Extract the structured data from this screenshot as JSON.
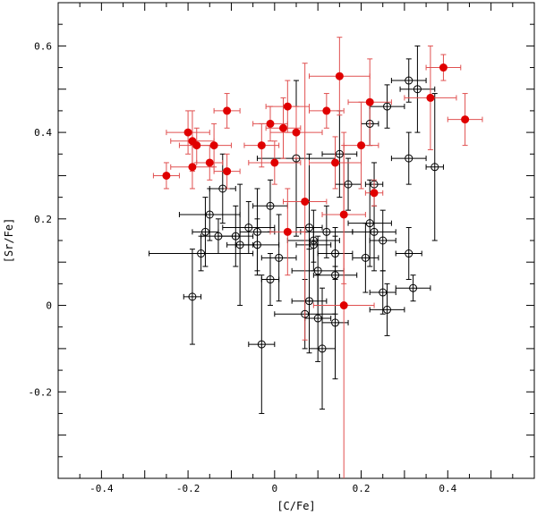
{
  "chart_data": {
    "type": "scatter",
    "title": "",
    "xlabel": "[C/Fe]",
    "ylabel": "[Sr/Fe]",
    "xlim": [
      -0.5,
      0.6
    ],
    "ylim": [
      -0.4,
      0.7
    ],
    "x_ticks": [
      -0.4,
      -0.2,
      0,
      0.2,
      0.4
    ],
    "x_tick_labels": [
      "-0.4",
      "-0.2",
      "0",
      "0.2",
      "0.4"
    ],
    "y_ticks": [
      -0.2,
      0,
      0.2,
      0.4,
      0.6
    ],
    "y_tick_labels": [
      "-0.2",
      "0",
      "0.2",
      "0.4",
      "0.6"
    ],
    "grid": false,
    "series": [
      {
        "marker": "filled-circle",
        "color": "#e00000",
        "errorbar_color": "#e05050",
        "points": [
          {
            "x": -0.25,
            "y": 0.3,
            "xerr": 0.03,
            "yerr": 0.03
          },
          {
            "x": -0.2,
            "y": 0.4,
            "xerr": 0.05,
            "yerr": 0.05
          },
          {
            "x": -0.19,
            "y": 0.38,
            "xerr": 0.05,
            "yerr": 0.07
          },
          {
            "x": -0.18,
            "y": 0.37,
            "xerr": 0.04,
            "yerr": 0.04
          },
          {
            "x": -0.19,
            "y": 0.32,
            "xerr": 0.05,
            "yerr": 0.05
          },
          {
            "x": -0.15,
            "y": 0.33,
            "xerr": 0.03,
            "yerr": 0.04
          },
          {
            "x": -0.14,
            "y": 0.37,
            "xerr": 0.04,
            "yerr": 0.05
          },
          {
            "x": -0.11,
            "y": 0.45,
            "xerr": 0.03,
            "yerr": 0.04
          },
          {
            "x": -0.11,
            "y": 0.31,
            "xerr": 0.03,
            "yerr": 0.04
          },
          {
            "x": -0.03,
            "y": 0.37,
            "xerr": 0.04,
            "yerr": 0.05
          },
          {
            "x": -0.01,
            "y": 0.42,
            "xerr": 0.04,
            "yerr": 0.04
          },
          {
            "x": 0.0,
            "y": 0.33,
            "xerr": 0.06,
            "yerr": 0.05
          },
          {
            "x": 0.02,
            "y": 0.41,
            "xerr": 0.04,
            "yerr": 0.07
          },
          {
            "x": 0.03,
            "y": 0.46,
            "xerr": 0.05,
            "yerr": 0.06
          },
          {
            "x": 0.05,
            "y": 0.4,
            "xerr": 0.06,
            "yerr": 0.06
          },
          {
            "x": 0.03,
            "y": 0.17,
            "xerr": 0.04,
            "yerr": 0.1
          },
          {
            "x": 0.07,
            "y": 0.24,
            "xerr": 0.05,
            "yerr": 0.32
          },
          {
            "x": 0.12,
            "y": 0.45,
            "xerr": 0.04,
            "yerr": 0.04
          },
          {
            "x": 0.14,
            "y": 0.33,
            "xerr": 0.06,
            "yerr": 0.06
          },
          {
            "x": 0.15,
            "y": 0.53,
            "xerr": 0.07,
            "yerr": 0.09
          },
          {
            "x": 0.16,
            "y": 0.21,
            "xerr": 0.05,
            "yerr": 0.16
          },
          {
            "x": 0.16,
            "y": 0.0,
            "xerr": 0.07,
            "yerr": 0.4
          },
          {
            "x": 0.2,
            "y": 0.37,
            "xerr": 0.04,
            "yerr": 0.1
          },
          {
            "x": 0.22,
            "y": 0.47,
            "xerr": 0.05,
            "yerr": 0.1
          },
          {
            "x": 0.23,
            "y": 0.26,
            "xerr": 0.02,
            "yerr": 0.03
          },
          {
            "x": 0.36,
            "y": 0.48,
            "xerr": 0.06,
            "yerr": 0.12
          },
          {
            "x": 0.39,
            "y": 0.55,
            "xerr": 0.04,
            "yerr": 0.03
          },
          {
            "x": 0.44,
            "y": 0.43,
            "xerr": 0.04,
            "yerr": 0.06
          }
        ]
      },
      {
        "marker": "open-circle",
        "color": "#000000",
        "errorbar_color": "#000000",
        "points": [
          {
            "x": -0.19,
            "y": 0.02,
            "xerr": 0.02,
            "yerr": 0.11
          },
          {
            "x": -0.17,
            "y": 0.12,
            "xerr": 0.12,
            "yerr": 0.04
          },
          {
            "x": -0.16,
            "y": 0.17,
            "xerr": 0.03,
            "yerr": 0.08
          },
          {
            "x": -0.15,
            "y": 0.21,
            "xerr": 0.07,
            "yerr": 0.06
          },
          {
            "x": -0.13,
            "y": 0.16,
            "xerr": 0.04,
            "yerr": 0.04
          },
          {
            "x": -0.12,
            "y": 0.27,
            "xerr": 0.03,
            "yerr": 0.08
          },
          {
            "x": -0.09,
            "y": 0.16,
            "xerr": 0.04,
            "yerr": 0.07
          },
          {
            "x": -0.08,
            "y": 0.14,
            "xerr": 0.03,
            "yerr": 0.14
          },
          {
            "x": -0.06,
            "y": 0.18,
            "xerr": 0.06,
            "yerr": 0.06
          },
          {
            "x": -0.04,
            "y": 0.17,
            "xerr": 0.04,
            "yerr": 0.1
          },
          {
            "x": -0.04,
            "y": 0.14,
            "xerr": 0.05,
            "yerr": 0.06
          },
          {
            "x": -0.03,
            "y": -0.09,
            "xerr": 0.03,
            "yerr": 0.16
          },
          {
            "x": -0.01,
            "y": 0.23,
            "xerr": 0.04,
            "yerr": 0.06
          },
          {
            "x": -0.01,
            "y": 0.06,
            "xerr": 0.02,
            "yerr": 0.06
          },
          {
            "x": 0.01,
            "y": 0.11,
            "xerr": 0.04,
            "yerr": 0.1
          },
          {
            "x": 0.05,
            "y": 0.34,
            "xerr": 0.09,
            "yerr": 0.18
          },
          {
            "x": 0.07,
            "y": -0.02,
            "xerr": 0.07,
            "yerr": 0.08
          },
          {
            "x": 0.08,
            "y": 0.18,
            "xerr": 0.03,
            "yerr": 0.17
          },
          {
            "x": 0.08,
            "y": 0.01,
            "xerr": 0.04,
            "yerr": 0.12
          },
          {
            "x": 0.09,
            "y": 0.15,
            "xerr": 0.06,
            "yerr": 0.07
          },
          {
            "x": 0.09,
            "y": 0.14,
            "xerr": 0.04,
            "yerr": 0.04
          },
          {
            "x": 0.1,
            "y": -0.03,
            "xerr": 0.03,
            "yerr": 0.1
          },
          {
            "x": 0.1,
            "y": 0.08,
            "xerr": 0.06,
            "yerr": 0.08
          },
          {
            "x": 0.11,
            "y": -0.1,
            "xerr": 0.03,
            "yerr": 0.14
          },
          {
            "x": 0.12,
            "y": 0.17,
            "xerr": 0.06,
            "yerr": 0.06
          },
          {
            "x": 0.14,
            "y": 0.12,
            "xerr": 0.04,
            "yerr": 0.06
          },
          {
            "x": 0.14,
            "y": 0.07,
            "xerr": 0.05,
            "yerr": 0.09
          },
          {
            "x": 0.14,
            "y": -0.04,
            "xerr": 0.03,
            "yerr": 0.13
          },
          {
            "x": 0.15,
            "y": 0.35,
            "xerr": 0.04,
            "yerr": 0.1
          },
          {
            "x": 0.17,
            "y": 0.28,
            "xerr": 0.03,
            "yerr": 0.06
          },
          {
            "x": 0.21,
            "y": 0.11,
            "xerr": 0.03,
            "yerr": 0.08
          },
          {
            "x": 0.22,
            "y": 0.42,
            "xerr": 0.02,
            "yerr": 0.05
          },
          {
            "x": 0.22,
            "y": 0.19,
            "xerr": 0.05,
            "yerr": 0.1
          },
          {
            "x": 0.23,
            "y": 0.28,
            "xerr": 0.02,
            "yerr": 0.05
          },
          {
            "x": 0.23,
            "y": 0.17,
            "xerr": 0.05,
            "yerr": 0.09
          },
          {
            "x": 0.25,
            "y": 0.15,
            "xerr": 0.03,
            "yerr": 0.07
          },
          {
            "x": 0.25,
            "y": 0.03,
            "xerr": 0.03,
            "yerr": 0.05
          },
          {
            "x": 0.26,
            "y": 0.46,
            "xerr": 0.04,
            "yerr": 0.05
          },
          {
            "x": 0.26,
            "y": -0.01,
            "xerr": 0.04,
            "yerr": 0.06
          },
          {
            "x": 0.31,
            "y": 0.52,
            "xerr": 0.04,
            "yerr": 0.05
          },
          {
            "x": 0.31,
            "y": 0.34,
            "xerr": 0.04,
            "yerr": 0.06
          },
          {
            "x": 0.31,
            "y": 0.12,
            "xerr": 0.03,
            "yerr": 0.06
          },
          {
            "x": 0.32,
            "y": 0.04,
            "xerr": 0.04,
            "yerr": 0.03
          },
          {
            "x": 0.33,
            "y": 0.5,
            "xerr": 0.04,
            "yerr": 0.1
          },
          {
            "x": 0.37,
            "y": 0.32,
            "xerr": 0.02,
            "yerr": 0.17
          }
        ]
      }
    ]
  }
}
